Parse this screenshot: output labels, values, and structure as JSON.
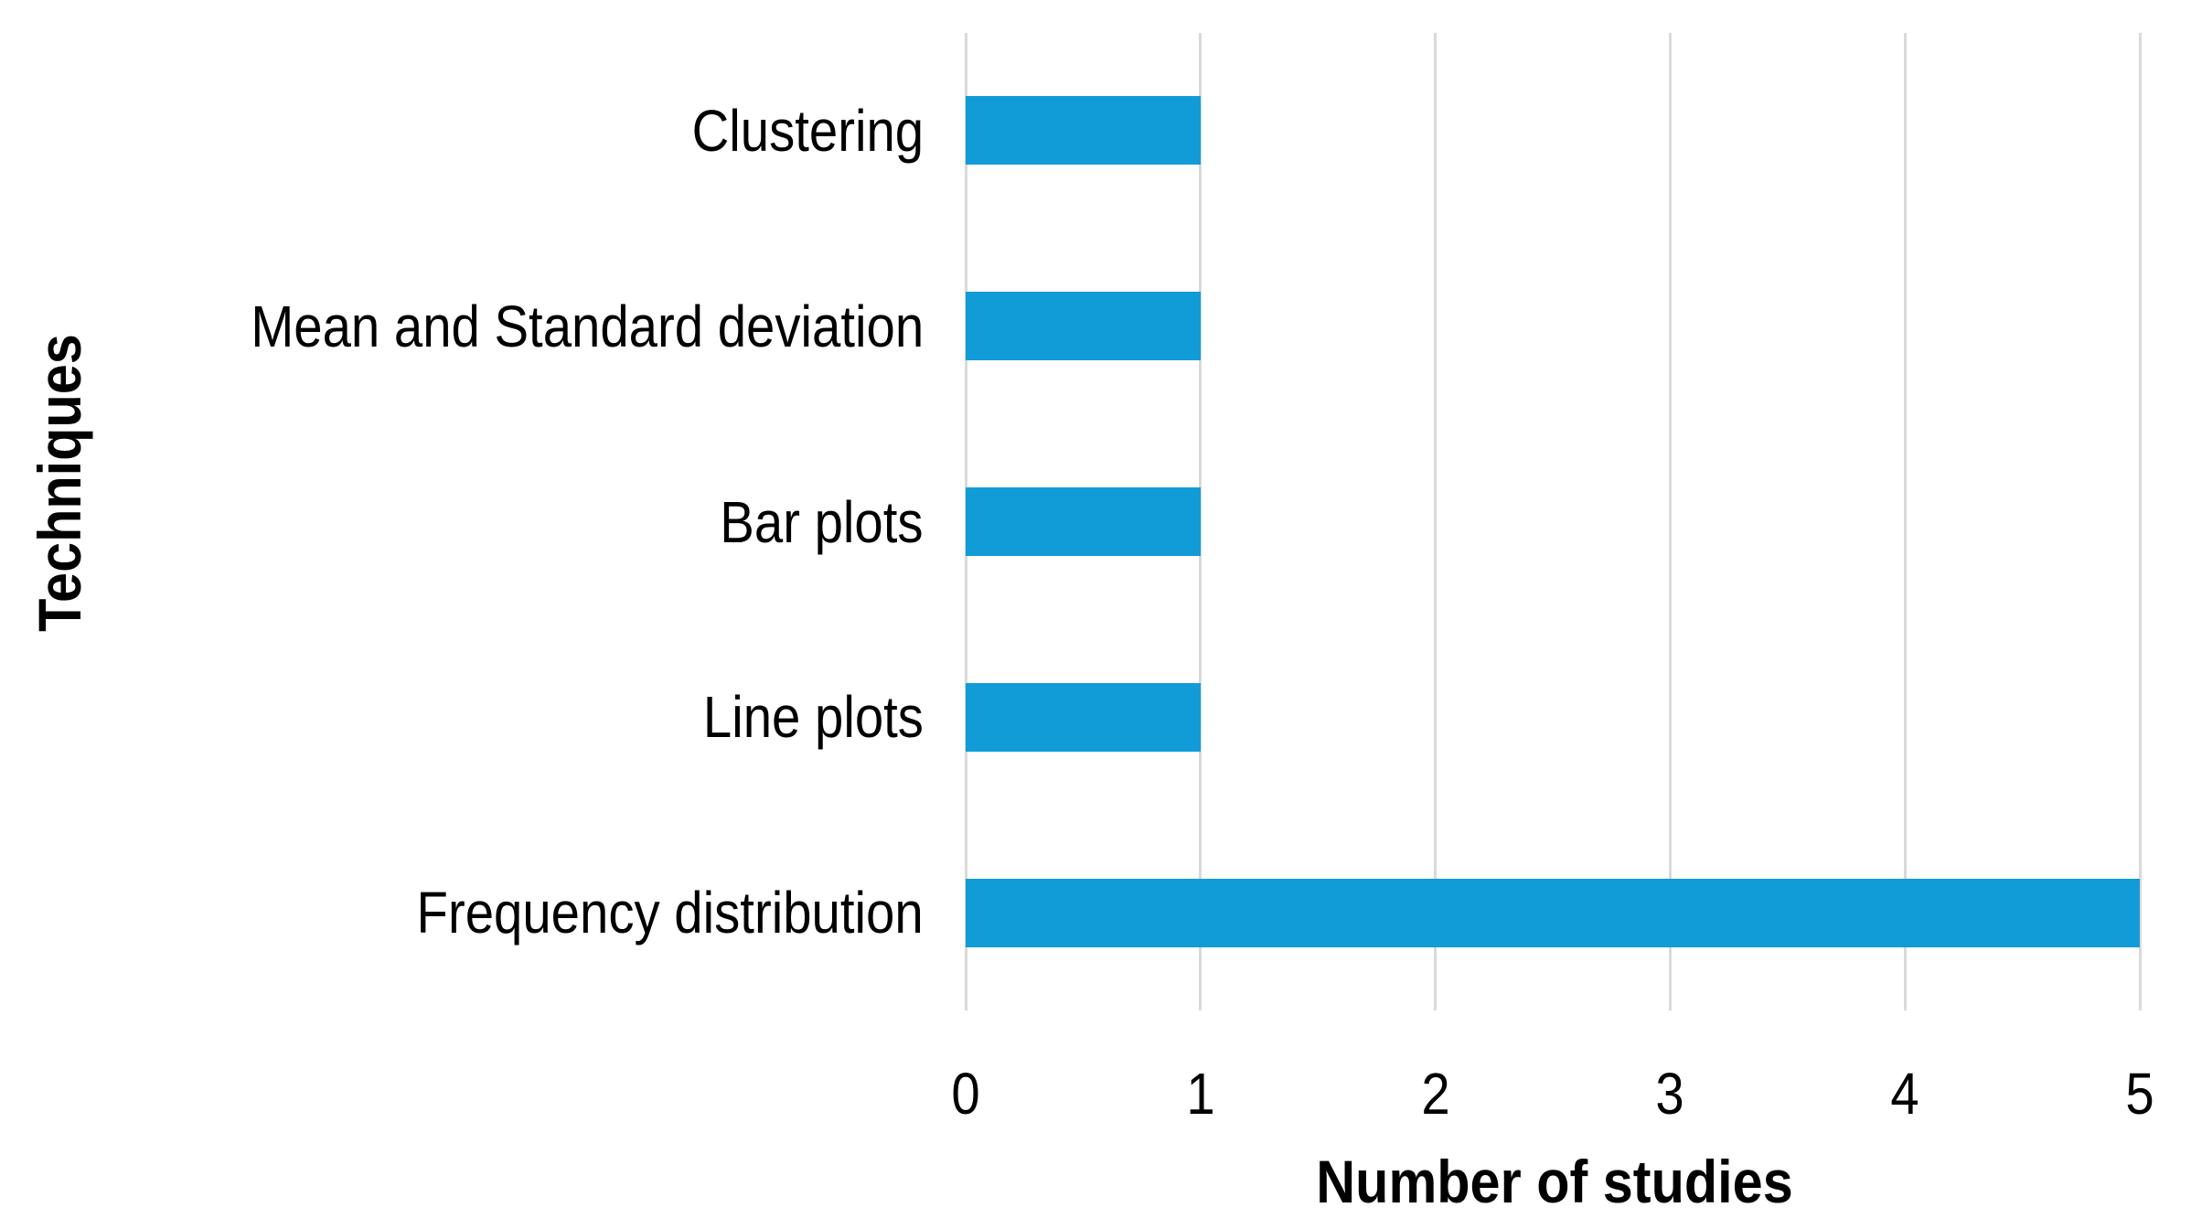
{
  "chart_data": {
    "type": "bar",
    "orientation": "horizontal",
    "title": "",
    "categories": [
      "Clustering",
      "Mean and Standard deviation",
      "Bar plots",
      "Line plots",
      "Frequency distribution"
    ],
    "values": [
      1,
      1,
      1,
      1,
      5
    ],
    "xlabel": "Number of studies",
    "ylabel": "Techniques",
    "xlim": [
      0,
      5
    ],
    "xticks": [
      "0",
      "1",
      "2",
      "3",
      "4",
      "5"
    ],
    "grid": "vertical-gridlines-on",
    "legend": "none",
    "bar_color": "#119CD8",
    "gridline_color": "#D9D9D9",
    "text_color": "#000000",
    "background_color": "#FFFFFF"
  }
}
